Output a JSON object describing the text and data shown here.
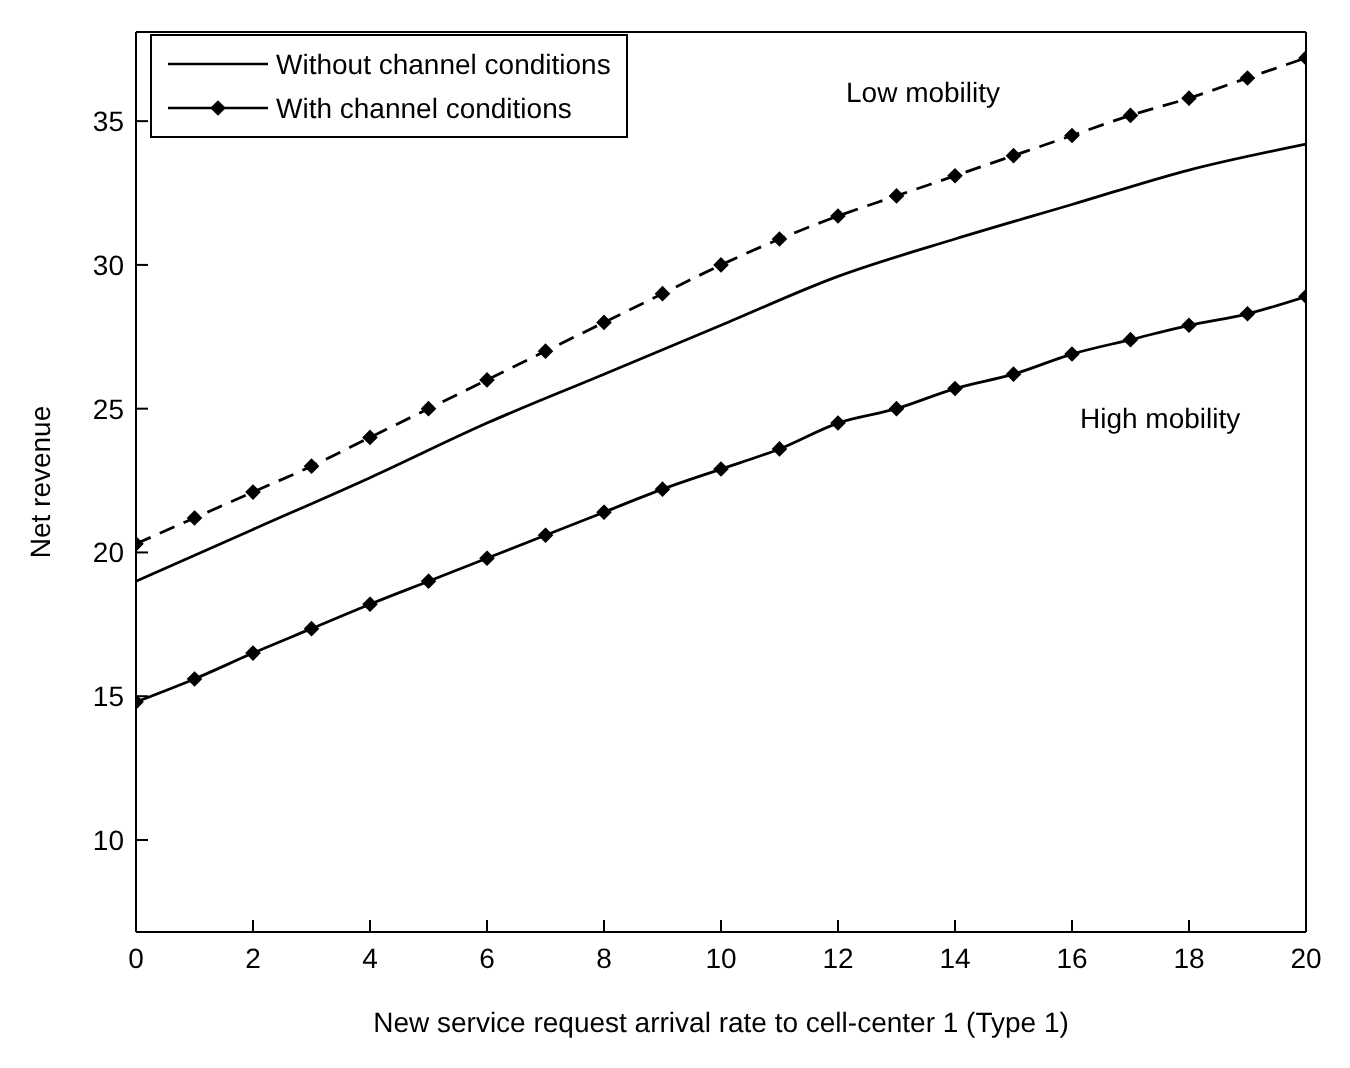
{
  "chart_data": {
    "type": "line",
    "xlabel": "New service request arrival rate to cell-center 1 (Type 1)",
    "ylabel": "Net revenue",
    "xlim": [
      0,
      20
    ],
    "ylim": [
      6.8,
      38.1
    ],
    "xticks": [
      0,
      2,
      4,
      6,
      8,
      10,
      12,
      14,
      16,
      18,
      20
    ],
    "yticks": [
      10,
      15,
      20,
      25,
      30,
      35
    ],
    "legend": "top left",
    "series": [
      {
        "name": "Without channel conditions",
        "color": "#000000",
        "marker": "none",
        "line_style": "solid",
        "x": [
          0,
          2,
          4,
          6,
          8,
          10,
          12,
          14,
          16,
          18,
          20
        ],
        "values": [
          19.0,
          20.8,
          22.6,
          24.5,
          26.2,
          27.9,
          29.6,
          30.9,
          32.1,
          33.3,
          34.2
        ]
      },
      {
        "name": "With channel conditions",
        "color": "#000000",
        "marker": "diamond",
        "line_style": "solid",
        "x": [
          0,
          1,
          2,
          3,
          4,
          5,
          6,
          7,
          8,
          9,
          10,
          11,
          12,
          13,
          14,
          15,
          16,
          17,
          18,
          19,
          20
        ],
        "values": [
          14.8,
          15.6,
          16.5,
          17.35,
          18.2,
          19.0,
          19.8,
          20.6,
          21.4,
          22.2,
          22.9,
          23.6,
          24.5,
          25.0,
          25.7,
          26.2,
          26.9,
          27.4,
          27.9,
          28.3,
          28.9
        ]
      },
      {
        "color": "#000000",
        "marker": "diamond",
        "line_style": "dashed",
        "x": [
          0,
          1,
          2,
          3,
          4,
          5,
          6,
          7,
          8,
          9,
          10,
          11,
          12,
          13,
          14,
          15,
          16,
          17,
          18,
          19,
          20
        ],
        "values": [
          20.3,
          21.2,
          22.1,
          23.0,
          24.0,
          25.0,
          26.0,
          27.0,
          28.0,
          29.0,
          30.0,
          30.9,
          31.7,
          32.4,
          33.1,
          33.8,
          34.5,
          35.2,
          35.8,
          36.5,
          37.2
        ]
      }
    ],
    "annotations": [
      "Low mobility",
      "High mobility"
    ]
  }
}
